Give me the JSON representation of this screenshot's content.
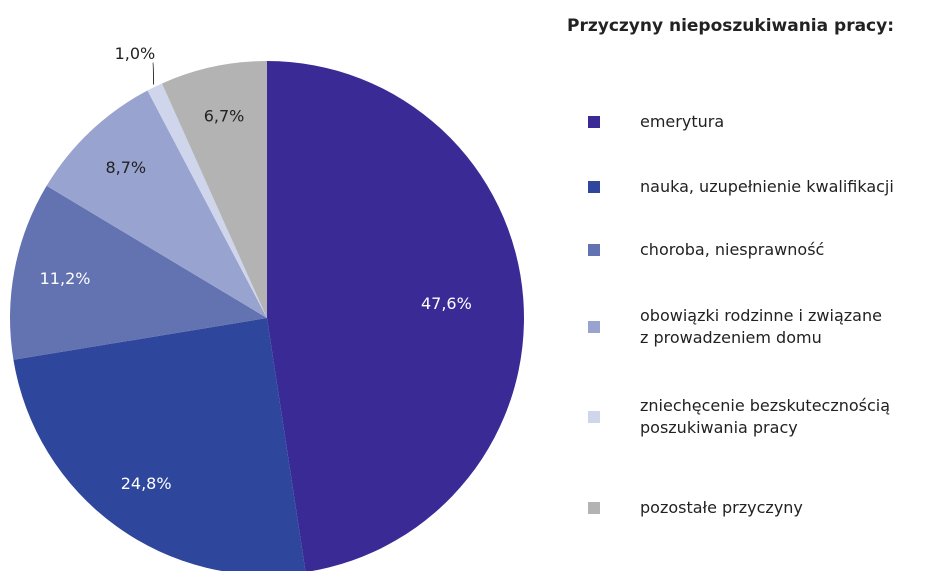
{
  "chart_data": {
    "type": "pie",
    "legend_title": "Przyczyny nieposzukiwania pracy:",
    "categories": [
      "emerytura",
      "nauka, uzupełnienie kwalifikacji",
      "choroba, niesprawność",
      "obowiązki rodzinne i związane\nz prowadzeniem domu",
      "zniechęcenie bezskutecznością\nposzukiwania pracy",
      "pozostałe przyczyny"
    ],
    "values": [
      47.6,
      24.8,
      11.2,
      8.7,
      1.0,
      6.7
    ],
    "value_labels": [
      "47,6%",
      "24,8%",
      "11,2%",
      "8,7%",
      "1,0%",
      "6,7%"
    ],
    "colors": [
      "#3a2a96",
      "#2e479c",
      "#6372b0",
      "#98a3cf",
      "#cfd5ea",
      "#b3b3b3"
    ],
    "legend": "right"
  }
}
